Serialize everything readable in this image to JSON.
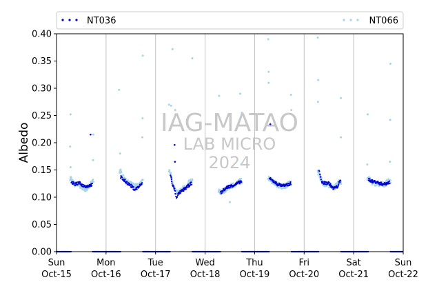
{
  "chart_data": {
    "type": "scatter",
    "ylabel": "Albedo",
    "ylim": [
      0,
      0.4
    ],
    "yticks": [
      0.0,
      0.05,
      0.1,
      0.15,
      0.2,
      0.25,
      0.3,
      0.35,
      0.4
    ],
    "ytick_labels": [
      "0.00",
      "0.05",
      "0.10",
      "0.15",
      "0.20",
      "0.25",
      "0.30",
      "0.35",
      "0.40"
    ],
    "xlim": [
      "2024-10-15",
      "2024-10-22"
    ],
    "xticks": [
      {
        "day": "Sun",
        "date": "Oct-15"
      },
      {
        "day": "Mon",
        "date": "Oct-16"
      },
      {
        "day": "Tue",
        "date": "Oct-17"
      },
      {
        "day": "Wed",
        "date": "Oct-18"
      },
      {
        "day": "Thu",
        "date": "Oct-19"
      },
      {
        "day": "Fri",
        "date": "Oct-20"
      },
      {
        "day": "Sat",
        "date": "Oct-21"
      },
      {
        "day": "Sun",
        "date": "Oct-22"
      }
    ],
    "grid": "vertical at day boundaries",
    "legend": {
      "placement": "top, spanning width"
    },
    "series": [
      {
        "name": "NT036",
        "color": "#0000cc",
        "days": [
          {
            "day": 0,
            "start_hour": 7.2,
            "end_hour": 17.3,
            "points": [
              [
                7.3,
                0.127
              ],
              [
                9.0,
                0.124
              ],
              [
                11.0,
                0.126
              ],
              [
                13.0,
                0.121
              ],
              [
                15.0,
                0.12
              ],
              [
                16.8,
                0.123
              ]
            ],
            "outliers": [
              [
                16.5,
                0.215
              ]
            ]
          },
          {
            "day": 1,
            "start_hour": 7.0,
            "end_hour": 17.5,
            "points": [
              [
                7.0,
                0.137
              ],
              [
                8.5,
                0.132
              ],
              [
                10.0,
                0.127
              ],
              [
                12.0,
                0.121
              ],
              [
                14.0,
                0.114
              ],
              [
                15.5,
                0.118
              ],
              [
                17.2,
                0.124
              ]
            ],
            "outliers": []
          },
          {
            "day": 2,
            "start_hour": 7.2,
            "end_hour": 17.6,
            "points": [
              [
                7.2,
                0.142
              ],
              [
                8.0,
                0.125
              ],
              [
                9.0,
                0.117
              ],
              [
                10.0,
                0.1
              ],
              [
                11.5,
                0.108
              ],
              [
                13.0,
                0.112
              ],
              [
                15.0,
                0.118
              ],
              [
                17.4,
                0.126
              ]
            ],
            "outliers": [
              [
                9.2,
                0.196
              ],
              [
                9.4,
                0.165
              ]
            ]
          },
          {
            "day": 3,
            "start_hour": 7.5,
            "end_hour": 17.6,
            "points": [
              [
                7.6,
                0.108
              ],
              [
                9.0,
                0.113
              ],
              [
                11.0,
                0.119
              ],
              [
                13.0,
                0.121
              ],
              [
                15.0,
                0.124
              ],
              [
                17.4,
                0.129
              ]
            ],
            "outliers": []
          },
          {
            "day": 4,
            "start_hour": 7.3,
            "end_hour": 17.6,
            "points": [
              [
                7.5,
                0.133
              ],
              [
                9.0,
                0.13
              ],
              [
                11.0,
                0.124
              ],
              [
                13.0,
                0.122
              ],
              [
                15.0,
                0.121
              ],
              [
                17.3,
                0.125
              ]
            ],
            "outliers": [
              [
                7.6,
                0.234
              ]
            ]
          },
          {
            "day": 5,
            "start_hour": 7.3,
            "end_hour": 17.6,
            "points": [
              [
                7.4,
                0.149
              ],
              [
                8.5,
                0.127
              ],
              [
                10.0,
                0.126
              ],
              [
                12.0,
                0.126
              ],
              [
                14.0,
                0.116
              ],
              [
                16.0,
                0.119
              ],
              [
                17.4,
                0.129
              ]
            ],
            "outliers": []
          },
          {
            "day": 6,
            "start_hour": 7.2,
            "end_hour": 17.6,
            "points": [
              [
                7.2,
                0.133
              ],
              [
                9.0,
                0.129
              ],
              [
                11.0,
                0.128
              ],
              [
                13.0,
                0.125
              ],
              [
                15.0,
                0.124
              ],
              [
                17.5,
                0.128
              ]
            ],
            "outliers": []
          }
        ]
      },
      {
        "name": "NT066",
        "color": "#a8d4ea",
        "days": [
          {
            "day": 0,
            "start_hour": 6.5,
            "end_hour": 18.0,
            "points": [
              [
                7.0,
                0.135
              ],
              [
                8.0,
                0.125
              ],
              [
                10.0,
                0.123
              ],
              [
                12.0,
                0.12
              ],
              [
                14.0,
                0.115
              ],
              [
                16.0,
                0.12
              ],
              [
                17.5,
                0.13
              ]
            ],
            "outliers": [
              [
                6.8,
                0.252
              ],
              [
                6.6,
                0.193
              ],
              [
                17.8,
                0.215
              ],
              [
                17.7,
                0.168
              ],
              [
                6.8,
                0.155
              ]
            ]
          },
          {
            "day": 1,
            "start_hour": 6.5,
            "end_hour": 18.0,
            "points": [
              [
                7.0,
                0.148
              ],
              [
                8.5,
                0.135
              ],
              [
                10.0,
                0.128
              ],
              [
                12.0,
                0.124
              ],
              [
                14.0,
                0.12
              ],
              [
                16.0,
                0.121
              ],
              [
                17.5,
                0.128
              ]
            ],
            "outliers": [
              [
                6.3,
                0.297
              ],
              [
                6.8,
                0.18
              ],
              [
                17.8,
                0.36
              ],
              [
                17.7,
                0.245
              ],
              [
                17.6,
                0.21
              ]
            ]
          },
          {
            "day": 2,
            "start_hour": 6.5,
            "end_hour": 18.0,
            "points": [
              [
                7.0,
                0.15
              ],
              [
                8.0,
                0.13
              ],
              [
                9.5,
                0.112
              ],
              [
                11.0,
                0.108
              ],
              [
                13.0,
                0.115
              ],
              [
                15.0,
                0.12
              ],
              [
                17.0,
                0.13
              ]
            ],
            "outliers": [
              [
                6.5,
                0.27
              ],
              [
                7.5,
                0.268
              ],
              [
                8.2,
                0.372
              ],
              [
                9.5,
                0.26
              ],
              [
                17.8,
                0.355
              ]
            ]
          },
          {
            "day": 3,
            "start_hour": 6.5,
            "end_hour": 18.0,
            "points": [
              [
                7.0,
                0.11
              ],
              [
                9.0,
                0.112
              ],
              [
                11.0,
                0.117
              ],
              [
                13.0,
                0.121
              ],
              [
                15.0,
                0.124
              ],
              [
                17.0,
                0.13
              ]
            ],
            "outliers": [
              [
                6.8,
                0.286
              ],
              [
                12.0,
                0.091
              ],
              [
                17.0,
                0.29
              ],
              [
                17.8,
                0.255
              ],
              [
                17.5,
                0.16
              ]
            ]
          },
          {
            "day": 4,
            "start_hour": 6.5,
            "end_hour": 18.0,
            "points": [
              [
                7.0,
                0.135
              ],
              [
                9.0,
                0.128
              ],
              [
                11.0,
                0.123
              ],
              [
                13.0,
                0.12
              ],
              [
                15.0,
                0.121
              ],
              [
                17.0,
                0.126
              ]
            ],
            "outliers": [
              [
                6.6,
                0.39
              ],
              [
                6.8,
                0.33
              ],
              [
                6.8,
                0.31
              ],
              [
                17.6,
                0.288
              ],
              [
                17.8,
                0.26
              ]
            ]
          },
          {
            "day": 5,
            "start_hour": 6.5,
            "end_hour": 18.0,
            "points": [
              [
                7.0,
                0.145
              ],
              [
                9.0,
                0.125
              ],
              [
                11.0,
                0.124
              ],
              [
                13.0,
                0.121
              ],
              [
                15.0,
                0.118
              ],
              [
                17.0,
                0.128
              ]
            ],
            "outliers": [
              [
                6.6,
                0.393
              ],
              [
                6.8,
                0.315
              ],
              [
                6.7,
                0.275
              ],
              [
                17.8,
                0.282
              ],
              [
                17.8,
                0.21
              ]
            ]
          },
          {
            "day": 6,
            "start_hour": 6.5,
            "end_hour": 18.0,
            "points": [
              [
                7.0,
                0.135
              ],
              [
                9.0,
                0.127
              ],
              [
                11.0,
                0.125
              ],
              [
                13.0,
                0.123
              ],
              [
                15.0,
                0.124
              ],
              [
                17.0,
                0.13
              ]
            ],
            "outliers": [
              [
                6.8,
                0.252
              ],
              [
                6.6,
                0.16
              ],
              [
                17.8,
                0.345
              ],
              [
                17.7,
                0.242
              ],
              [
                17.6,
                0.165
              ]
            ]
          }
        ]
      }
    ]
  },
  "watermark": {
    "line1": "IAG-MATAO",
    "line2": "LAB MICRO",
    "line3": "2024",
    "color": "#c8c8c8"
  }
}
